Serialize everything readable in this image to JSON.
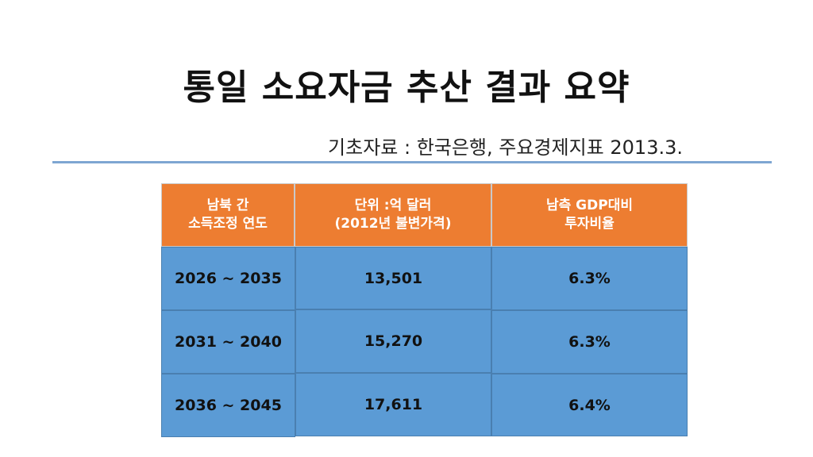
{
  "slide": {
    "title": "통일 소요자금 추산 결과 요약",
    "source": "기초자료 : 한국은행, 주요경제지표 2013.3."
  },
  "table": {
    "headers": [
      {
        "line1": "남북 간",
        "line2": "소득조정 연도"
      },
      {
        "line1": "단위 :억 달러",
        "line2": "(2012년 불변가격)"
      },
      {
        "line1": "남측 GDP대비",
        "line2": "투자비율"
      }
    ],
    "rows": [
      {
        "period": "2026 ~ 2035",
        "amount": "13,501",
        "ratio": "6.3%"
      },
      {
        "period": "2031 ~ 2040",
        "amount": "15,270",
        "ratio": "6.3%"
      },
      {
        "period": "2036 ~ 2045",
        "amount": "17,611",
        "ratio": "6.4%"
      }
    ]
  },
  "colors": {
    "header_bg": "#ed7d31",
    "body_bg": "#5b9bd5",
    "rule": "#7ea6d2"
  }
}
